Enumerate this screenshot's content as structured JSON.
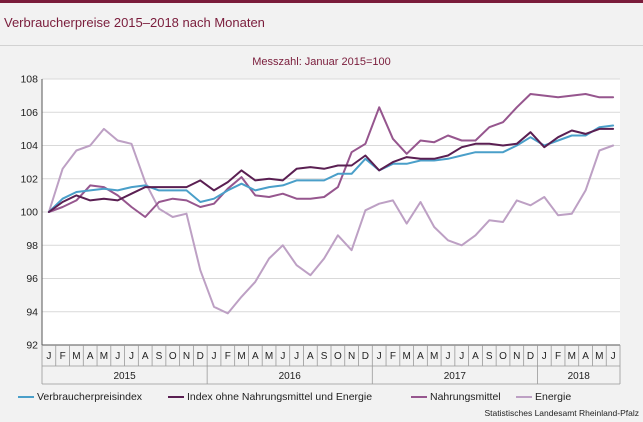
{
  "title": "Verbraucherpreise 2015–2018 nach Monaten",
  "source": "Statistisches Landesamt Rheinland-Pfalz",
  "colors": {
    "title": "#7a1c3b",
    "vpi": "#4a9fc9",
    "ohne": "#5a1f52",
    "nahrung": "#96568e",
    "energie": "#bda0c4"
  },
  "chart_data": {
    "type": "line",
    "title": "",
    "subtitle": "Messzahl: Januar 2015=100",
    "xlabel": "",
    "ylabel": "",
    "ylim": [
      92,
      108
    ],
    "yticks": [
      "92",
      "94",
      "96",
      "98",
      "100",
      "102",
      "104",
      "106",
      "108"
    ],
    "grid": true,
    "legend_position": "bottom",
    "months": [
      "J",
      "F",
      "M",
      "A",
      "M",
      "J",
      "J",
      "A",
      "S",
      "O",
      "N",
      "D",
      "J",
      "F",
      "M",
      "A",
      "M",
      "J",
      "J",
      "A",
      "S",
      "O",
      "N",
      "D",
      "J",
      "F",
      "M",
      "A",
      "M",
      "J",
      "J",
      "A",
      "S",
      "O",
      "N",
      "D",
      "J",
      "F",
      "M",
      "A",
      "M",
      "J"
    ],
    "years": [
      {
        "label": "2015",
        "months": 12
      },
      {
        "label": "2016",
        "months": 12
      },
      {
        "label": "2017",
        "months": 12
      },
      {
        "label": "2018",
        "months": 6
      }
    ],
    "series": [
      {
        "name": "Energie",
        "key": "energie",
        "values": [
          100.0,
          102.6,
          103.7,
          104.0,
          105.0,
          104.3,
          104.1,
          101.8,
          100.2,
          99.7,
          99.9,
          96.5,
          94.3,
          93.9,
          94.9,
          95.8,
          97.2,
          98.0,
          96.8,
          96.2,
          97.2,
          98.6,
          97.7,
          100.1,
          100.5,
          100.7,
          99.3,
          100.6,
          99.1,
          98.3,
          98.0,
          98.6,
          99.5,
          99.4,
          100.7,
          100.4,
          100.9,
          99.8,
          99.9,
          101.3,
          103.7,
          104.0
        ]
      },
      {
        "name": "Nahrungsmittel",
        "key": "nahrung",
        "values": [
          100.0,
          100.3,
          100.7,
          101.6,
          101.5,
          101.0,
          100.3,
          99.7,
          100.6,
          100.8,
          100.7,
          100.3,
          100.5,
          101.4,
          102.1,
          101.0,
          100.9,
          101.1,
          100.8,
          100.8,
          100.9,
          101.5,
          103.6,
          104.1,
          106.3,
          104.4,
          103.5,
          104.3,
          104.2,
          104.6,
          104.3,
          104.3,
          105.1,
          105.4,
          106.3,
          107.1,
          107.0,
          106.9,
          107.0,
          107.1,
          106.9,
          106.9
        ]
      },
      {
        "name": "Verbraucherpreisindex",
        "key": "vpi",
        "values": [
          100.0,
          100.8,
          101.2,
          101.3,
          101.4,
          101.3,
          101.5,
          101.6,
          101.3,
          101.3,
          101.3,
          100.6,
          100.8,
          101.3,
          101.7,
          101.3,
          101.5,
          101.6,
          101.9,
          101.9,
          101.9,
          102.3,
          102.3,
          103.2,
          102.5,
          102.9,
          102.9,
          103.1,
          103.1,
          103.2,
          103.4,
          103.6,
          103.6,
          103.6,
          104.0,
          104.5,
          104.0,
          104.3,
          104.6,
          104.6,
          105.1,
          105.2
        ]
      },
      {
        "name": "Index ohne Nahrungsmittel und Energie",
        "key": "ohne",
        "values": [
          100.0,
          100.6,
          101.0,
          100.7,
          100.8,
          100.7,
          101.1,
          101.5,
          101.5,
          101.5,
          101.5,
          101.9,
          101.3,
          101.8,
          102.5,
          101.9,
          102.0,
          101.9,
          102.6,
          102.7,
          102.6,
          102.8,
          102.8,
          103.4,
          102.5,
          103.0,
          103.3,
          103.2,
          103.2,
          103.4,
          103.9,
          104.1,
          104.1,
          104.0,
          104.1,
          104.8,
          103.9,
          104.5,
          104.9,
          104.7,
          105.0,
          105.0
        ]
      }
    ],
    "legend": [
      {
        "key": "vpi",
        "label": "Verbraucherpreisindex"
      },
      {
        "key": "ohne",
        "label": "Index ohne Nahrungsmittel und Energie"
      },
      {
        "key": "nahrung",
        "label": "Nahrungsmittel"
      },
      {
        "key": "energie",
        "label": "Energie"
      }
    ]
  }
}
